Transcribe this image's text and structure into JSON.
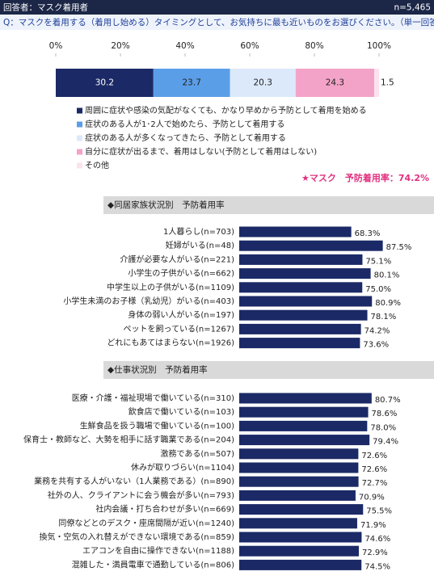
{
  "header": {
    "respondents": "回答者：マスク着用者",
    "n": "n=5,465"
  },
  "question": "Q：マスクを着用する（着用し始める）タイミングとして、お気持ちに最も近いものをお選びください。（単一回答）",
  "chart_data": [
    {
      "type": "stacked_bar",
      "xlim": [
        0,
        100
      ],
      "xticks": [
        {
          "value": 0,
          "label": "0%"
        },
        {
          "value": 20,
          "label": "20%"
        },
        {
          "value": 40,
          "label": "40%"
        },
        {
          "value": 60,
          "label": "60%"
        },
        {
          "value": 80,
          "label": "80%"
        },
        {
          "value": 100,
          "label": "100%"
        }
      ],
      "series": [
        {
          "name": "周囲に症状や感染の気配がなくても、かなり早めから予防として着用を始める",
          "color": "#1b2a66",
          "values": [
            30.2
          ]
        },
        {
          "name": "症状のある人が1･2人で始めたら、予防として着用する",
          "color": "#5b9ee8",
          "values": [
            23.7
          ]
        },
        {
          "name": "症状のある人が多くなってきたら、予防として着用する",
          "color": "#dce9fa",
          "values": [
            20.3
          ]
        },
        {
          "name": "自分に症状が出るまで、着用はしない(予防として着用はしない)",
          "color": "#f4a3c8",
          "values": [
            24.3
          ]
        },
        {
          "name": "その他",
          "color": "#fbe3ee",
          "values": [
            1.5
          ]
        }
      ],
      "annotation": "★マスク　予防着用率：74.2%"
    },
    {
      "type": "bar",
      "title": "◆同居家族状況別　予防着用率",
      "color": "#1b2a66",
      "categories": [
        "1人暮らし(n=703)",
        "妊婦がいる(n=48)",
        "介護が必要な人がいる(n=221)",
        "小学生の子供がいる(n=662)",
        "中学生以上の子供がいる(n=1109)",
        "小学生未満のお子様（乳幼児）がいる(n=403)",
        "身体の弱い人がいる(n=197)",
        "ペットを飼っている(n=1267)",
        "どれにもあてはまらない(n=1926)"
      ],
      "values": [
        68.3,
        87.5,
        75.1,
        80.1,
        75.0,
        80.9,
        78.1,
        74.2,
        73.6
      ],
      "value_labels": [
        "68.3%",
        "87.5%",
        "75.1%",
        "80.1%",
        "75.0%",
        "80.9%",
        "78.1%",
        "74.2%",
        "73.6%"
      ]
    },
    {
      "type": "bar",
      "title": "◆仕事状況別　予防着用率",
      "color": "#1b2a66",
      "categories": [
        "医療・介護・福祉現場で働いている(n=310)",
        "飲食店で働いている(n=103)",
        "生鮮食品を扱う職場で働いている(n=100)",
        "保育士・教師など、大勢を相手に話す職業である(n=204)",
        "激務である(n=507)",
        "休みが取りづらい(n=1104)",
        "業務を共有する人がいない（1人業務である）(n=890)",
        "社外の人、クライアントに会う機会が多い(n=793)",
        "社内会議・打ち合わせが多い(n=669)",
        "同僚などとのデスク・座席間隔が近い(n=1240)",
        "換気・空気の入れ替えができない環境である(n=859)",
        "エアコンを自由に操作できない(n=1188)",
        "混雑した・満員電車で通勤している(n=806)"
      ],
      "values": [
        80.7,
        78.6,
        78.0,
        79.4,
        72.6,
        72.6,
        72.7,
        70.9,
        75.5,
        71.9,
        74.6,
        72.9,
        74.5
      ],
      "value_labels": [
        "80.7%",
        "78.6%",
        "78.0%",
        "79.4%",
        "72.6%",
        "72.6%",
        "72.7%",
        "70.9%",
        "75.5%",
        "71.9%",
        "74.6%",
        "72.9%",
        "74.5%"
      ]
    }
  ]
}
